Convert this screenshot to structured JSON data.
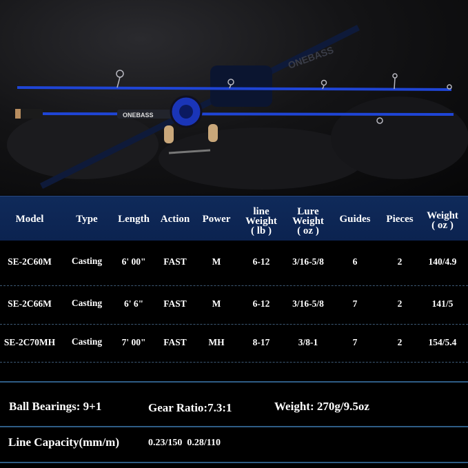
{
  "product_photo": {
    "brand_logo": "ONEBASS",
    "colors": {
      "rod_blue": "#1f45d6",
      "background": "#111113",
      "cork": "#c9a77a"
    }
  },
  "table": {
    "header_color": "#0f2a5a",
    "columns": [
      {
        "line1": "",
        "line2": "Model",
        "line3": ""
      },
      {
        "line1": "",
        "line2": "Type",
        "line3": ""
      },
      {
        "line1": "",
        "line2": "Length",
        "line3": ""
      },
      {
        "line1": "",
        "line2": "Action",
        "line3": ""
      },
      {
        "line1": "",
        "line2": "Power",
        "line3": ""
      },
      {
        "line1": "line",
        "line2": "Weight",
        "line3": "( lb )"
      },
      {
        "line1": "Lure",
        "line2": "Weight",
        "line3": "( oz )"
      },
      {
        "line1": "",
        "line2": "Guides",
        "line3": ""
      },
      {
        "line1": "",
        "line2": "Pieces",
        "line3": ""
      },
      {
        "line1": "Weight",
        "line2": "( oz )",
        "line3": ""
      }
    ],
    "rows": [
      [
        "SE-2C60M",
        "Casting",
        "6' 00\"",
        "FAST",
        "M",
        "6-12",
        "3/16-5/8",
        "6",
        "2",
        "140/4.9"
      ],
      [
        "SE-2C66M",
        "Casting",
        "6' 6\"",
        "FAST",
        "M",
        "6-12",
        "3/16-5/8",
        "7",
        "2",
        "141/5"
      ],
      [
        "SE-2C70MH",
        "Casting",
        "7' 00\"",
        "FAST",
        "MH",
        "8-17",
        "3/8-1",
        "7",
        "2",
        "154/5.4"
      ]
    ]
  },
  "reel_specs": {
    "ball_bearings": "Ball Bearings: 9+1",
    "gear_ratio": "Gear Ratio:7.3:1",
    "weight": "Weight: 270g/9.5oz",
    "line_capacity_label": "Line Capacity(mm/m)",
    "line_capacity_values": "0.23/150  0.28/110"
  }
}
